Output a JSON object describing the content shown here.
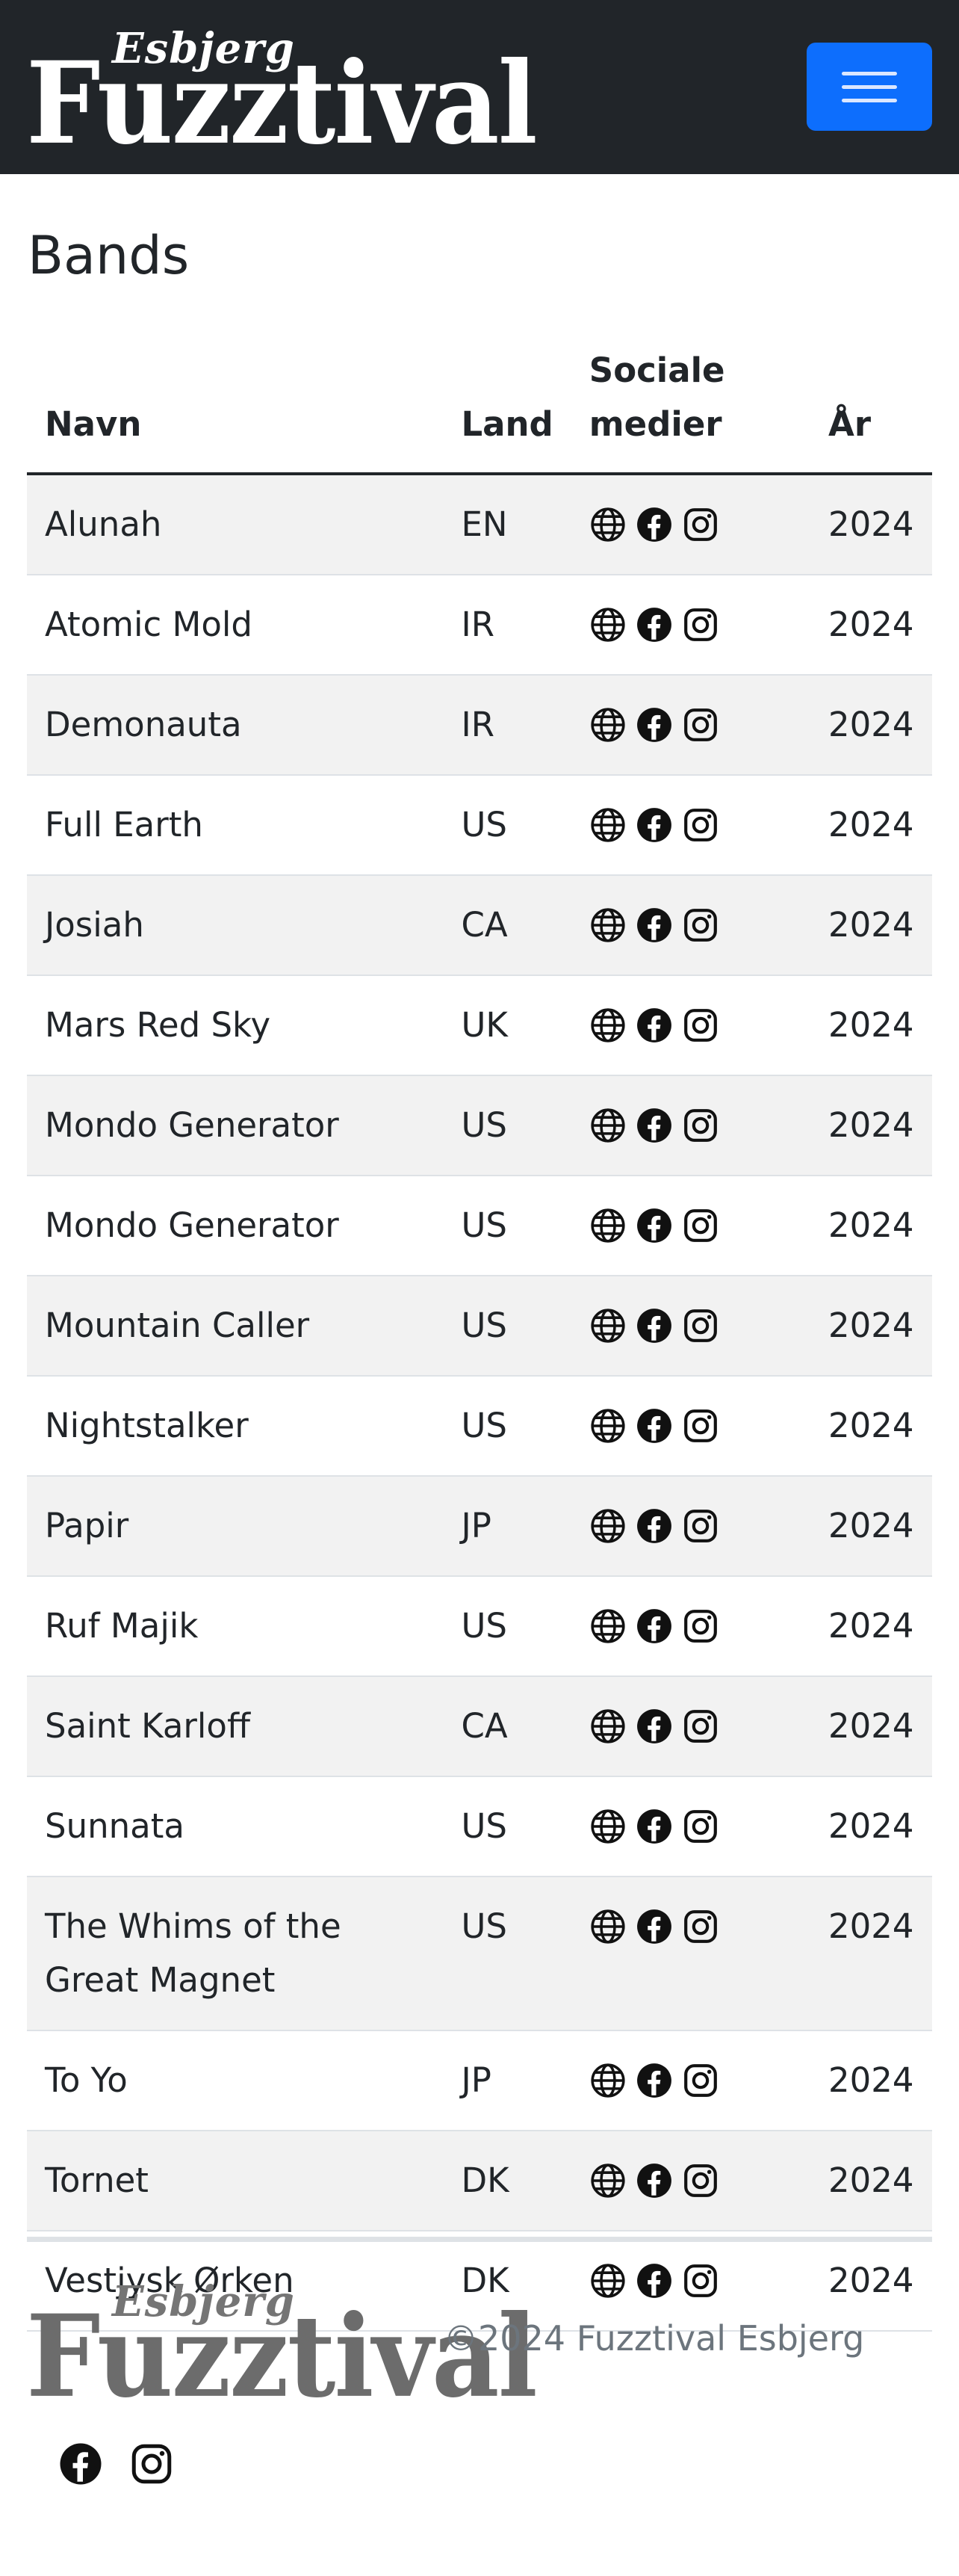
{
  "navbar": {
    "logo_small": "Esbjerg",
    "logo_big": "Fuzztival",
    "toggler_color": "#0d6efd"
  },
  "page": {
    "title": "Bands"
  },
  "table": {
    "headers": {
      "name": "Navn",
      "country": "Land",
      "social": "Sociale medier",
      "year": "År"
    },
    "social_icons": [
      "globe-icon",
      "facebook-icon",
      "instagram-icon"
    ],
    "rows": [
      {
        "name": "Alunah",
        "country": "EN",
        "year": "2024"
      },
      {
        "name": "Atomic Mold",
        "country": "IR",
        "year": "2024"
      },
      {
        "name": "Demonauta",
        "country": "IR",
        "year": "2024"
      },
      {
        "name": "Full Earth",
        "country": "US",
        "year": "2024"
      },
      {
        "name": "Josiah",
        "country": "CA",
        "year": "2024"
      },
      {
        "name": "Mars Red Sky",
        "country": "UK",
        "year": "2024"
      },
      {
        "name": "Mondo Generator",
        "country": "US",
        "year": "2024"
      },
      {
        "name": "Mondo Generator",
        "country": "US",
        "year": "2024"
      },
      {
        "name": "Mountain Caller",
        "country": "US",
        "year": "2024"
      },
      {
        "name": "Nightstalker",
        "country": "US",
        "year": "2024"
      },
      {
        "name": "Papir",
        "country": "JP",
        "year": "2024"
      },
      {
        "name": "Ruf Majik",
        "country": "US",
        "year": "2024"
      },
      {
        "name": "Saint Karloff",
        "country": "CA",
        "year": "2024"
      },
      {
        "name": "Sunnata",
        "country": "US",
        "year": "2024"
      },
      {
        "name": "The Whims of the Great Magnet",
        "country": "US",
        "year": "2024"
      },
      {
        "name": "To Yo",
        "country": "JP",
        "year": "2024"
      },
      {
        "name": "Tornet",
        "country": "DK",
        "year": "2024"
      },
      {
        "name": "Vestjysk Ørken",
        "country": "DK",
        "year": "2024"
      }
    ]
  },
  "footer": {
    "logo_small": "Esbjerg",
    "logo_big": "Fuzztival",
    "copyright": "©2024 Fuzztival Esbjerg",
    "social_icons": [
      "facebook-icon",
      "instagram-icon"
    ]
  }
}
